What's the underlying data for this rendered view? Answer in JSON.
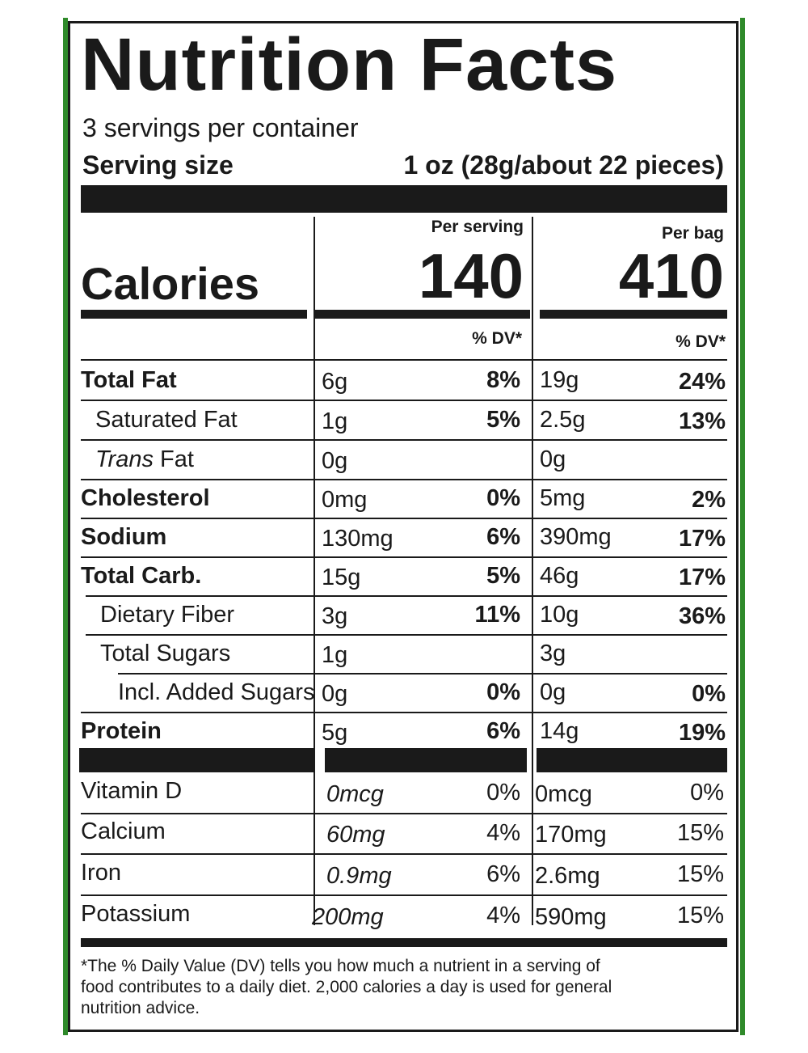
{
  "title": "Nutrition Facts",
  "servings_per_container": "3 servings per container",
  "serving_size_label": "Serving size",
  "serving_size_value": "1 oz (28g/about 22 pieces)",
  "columns": {
    "per_serving": "Per serving",
    "per_bag": "Per bag",
    "dv_header": "% DV*"
  },
  "calories": {
    "label": "Calories",
    "per_serving": "140",
    "per_bag": "410"
  },
  "nutrients": [
    {
      "label": "Total Fat",
      "serving_amount": "6g",
      "serving_dv": "8%",
      "bag_amount": "19g",
      "bag_dv": "24%"
    },
    {
      "label": "Saturated Fat",
      "serving_amount": "1g",
      "serving_dv": "5%",
      "bag_amount": "2.5g",
      "bag_dv": "13%"
    },
    {
      "label_italic": "Trans",
      "label": " Fat",
      "serving_amount": "0g",
      "serving_dv": "",
      "bag_amount": "0g",
      "bag_dv": ""
    },
    {
      "label": "Cholesterol",
      "serving_amount": "0mg",
      "serving_dv": "0%",
      "bag_amount": "5mg",
      "bag_dv": "2%"
    },
    {
      "label": "Sodium",
      "serving_amount": "130mg",
      "serving_dv": "6%",
      "bag_amount": "390mg",
      "bag_dv": "17%"
    },
    {
      "label": "Total Carb.",
      "serving_amount": "15g",
      "serving_dv": "5%",
      "bag_amount": "46g",
      "bag_dv": "17%"
    },
    {
      "label": "Dietary Fiber",
      "serving_amount": "3g",
      "serving_dv": "11%",
      "bag_amount": "10g",
      "bag_dv": "36%"
    },
    {
      "label": "Total Sugars",
      "serving_amount": "1g",
      "serving_dv": "",
      "bag_amount": "3g",
      "bag_dv": ""
    },
    {
      "label": "Incl. Added Sugars",
      "serving_amount": "0g",
      "serving_dv": "0%",
      "bag_amount": "0g",
      "bag_dv": "0%"
    },
    {
      "label": "Protein",
      "serving_amount": "5g",
      "serving_dv": "6%",
      "bag_amount": "14g",
      "bag_dv": "19%"
    }
  ],
  "vitamins": [
    {
      "label": "Vitamin D",
      "serving_amount": "0mcg",
      "serving_dv": "0%",
      "bag_amount": "0mcg",
      "bag_dv": "0%"
    },
    {
      "label": "Calcium",
      "serving_amount": "60mg",
      "serving_dv": "4%",
      "bag_amount": "170mg",
      "bag_dv": "15%"
    },
    {
      "label": "Iron",
      "serving_amount": "0.9mg",
      "serving_dv": "6%",
      "bag_amount": "2.6mg",
      "bag_dv": "15%"
    },
    {
      "label": "Potassium",
      "serving_amount": "200mg",
      "serving_dv": "4%",
      "bag_amount": "590mg",
      "bag_dv": "15%"
    }
  ],
  "footnote": {
    "line1": "*The % Daily Value (DV) tells you how much a nutrient in a serving of",
    "line2": "food contributes to a daily diet. 2,000 calories a day is used for general",
    "line3": "nutrition advice."
  }
}
